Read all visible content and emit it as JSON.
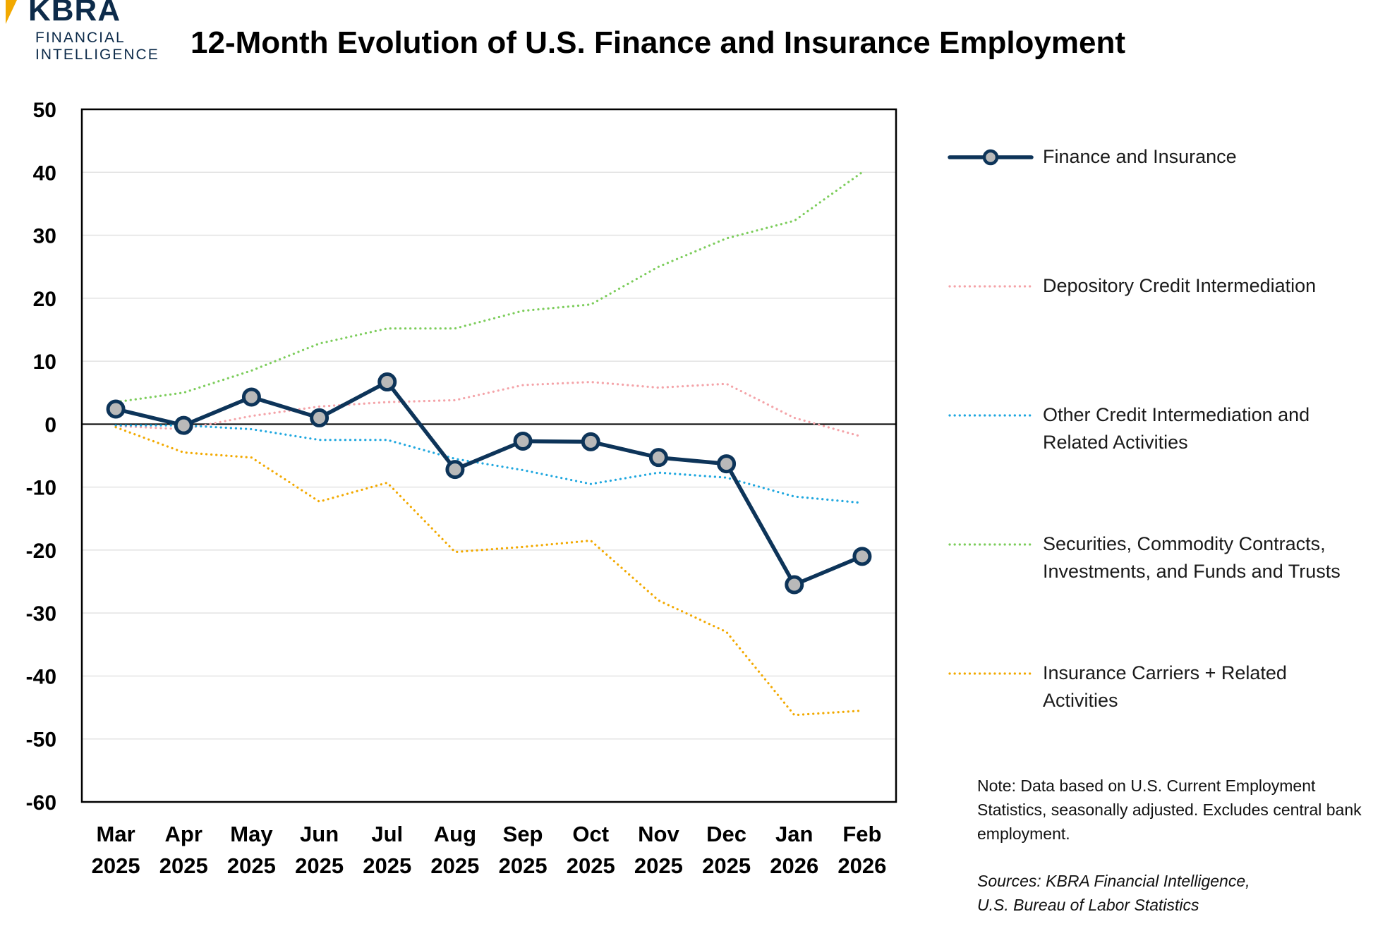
{
  "brand": {
    "name": "KBRA",
    "line1": "FINANCIAL",
    "line2": "INTELLIGENCE",
    "accent_color": "#f2a900",
    "text_color": "#0d2b4a"
  },
  "note": "Note: Data based on U.S. Current Employment Statistics, seasonally adjusted. Excludes central bank employment.",
  "sources": {
    "line1": "Sources: KBRA Financial Intelligence,",
    "line2": "U.S. Bureau of Labor Statistics"
  },
  "chart_data": {
    "type": "line",
    "title": "12-Month Evolution of U.S. Finance and Insurance Employment",
    "xlabel": "",
    "ylabel": "",
    "ylim": [
      -60,
      50
    ],
    "yticks": [
      50,
      40,
      30,
      20,
      10,
      0,
      -10,
      -20,
      -30,
      -40,
      -50,
      -60
    ],
    "grid": true,
    "legend_position": "right",
    "categories": [
      {
        "month": "Mar",
        "year": "2025"
      },
      {
        "month": "Apr",
        "year": "2025"
      },
      {
        "month": "May",
        "year": "2025"
      },
      {
        "month": "Jun",
        "year": "2025"
      },
      {
        "month": "Jul",
        "year": "2025"
      },
      {
        "month": "Aug",
        "year": "2025"
      },
      {
        "month": "Sep",
        "year": "2025"
      },
      {
        "month": "Oct",
        "year": "2025"
      },
      {
        "month": "Nov",
        "year": "2025"
      },
      {
        "month": "Dec",
        "year": "2025"
      },
      {
        "month": "Jan",
        "year": "2026"
      },
      {
        "month": "Feb",
        "year": "2026"
      }
    ],
    "series": [
      {
        "name": "Securities, Commodity Contracts, Investments, and Funds and Trusts",
        "label_lines": [
          "Securities, Commodity Contracts,",
          "Investments, and Funds and Trusts"
        ],
        "color": "#7ccd5b",
        "style": "dotted",
        "values": [
          3.5,
          5,
          8.5,
          12.8,
          15.2,
          15.2,
          18,
          19,
          25,
          29.5,
          32.3,
          40
        ]
      },
      {
        "name": "Depository Credit Intermediation",
        "label_lines": [
          "Depository Credit Intermediation"
        ],
        "color": "#f4a3a8",
        "style": "dotted",
        "values": [
          -0.3,
          -0.8,
          1.3,
          2.8,
          3.5,
          3.8,
          6.2,
          6.7,
          5.8,
          6.4,
          1,
          -2
        ]
      },
      {
        "name": "Other Credit Intermediation and Related Activities",
        "label_lines": [
          "Other Credit Intermediation and",
          "Related Activities"
        ],
        "color": "#1fa7df",
        "style": "dotted",
        "values": [
          -0.2,
          -0.2,
          -0.8,
          -2.5,
          -2.5,
          -5.5,
          -7.3,
          -9.5,
          -7.7,
          -8.5,
          -11.5,
          -12.5
        ]
      },
      {
        "name": "Insurance Carriers + Related Activities",
        "label_lines": [
          "Insurance Carriers + Related",
          "Activities"
        ],
        "color": "#f2a900",
        "style": "dotted",
        "values": [
          -0.5,
          -4.5,
          -5.3,
          -12.3,
          -9.3,
          -20.3,
          -19.5,
          -18.5,
          -28,
          -33,
          -46.2,
          -45.5
        ]
      },
      {
        "name": "Finance and Insurance",
        "label_lines": [
          "Finance and Insurance"
        ],
        "color": "#0d3459",
        "style": "solid-markers",
        "values": [
          2.4,
          -0.2,
          4.3,
          1,
          6.7,
          -7.2,
          -2.7,
          -2.8,
          -5.3,
          -6.3,
          -25.5,
          -21
        ]
      }
    ],
    "legend_order": [
      4,
      1,
      2,
      0,
      3
    ]
  }
}
